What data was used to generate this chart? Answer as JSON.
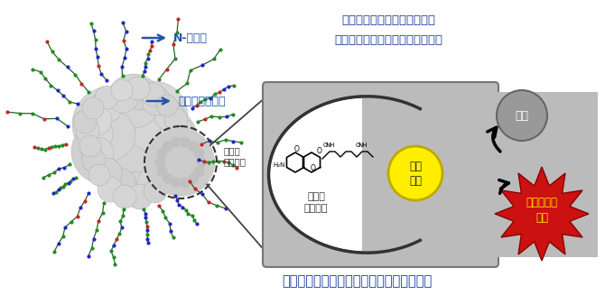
{
  "bg_color": "#ffffff",
  "title_text1": "「糖鎖パターン認識」により",
  "title_text2": "特定の臓器やがんに選択的に移行",
  "label_n_glycan": "N-型糖鎖",
  "label_albumin": "血清アルブミン",
  "label_pocket": "疏水性\nポケット",
  "label_ligand": "疏水性\nリガンド",
  "label_catalyst": "金属\n触媒",
  "label_material": "原料",
  "label_anticancer": "抗がん活性\n物質",
  "bottom_text": "遷移金属触媒が生体内環境で安定化される",
  "arrow_color": "#2255aa",
  "title_color": "#1a3a9a",
  "bottom_color": "#1a3a9a",
  "anticancer_color": "#cc1111",
  "anticancer_text_color": "#ffee00",
  "catalyst_fill": "#ffee00",
  "catalyst_stroke": "#bbaa00",
  "box_fill": "#bbbbbb",
  "box_stroke": "#777777",
  "material_fill": "#999999",
  "material_text_color": "#ffffff",
  "pocket_fill": "#cccccc"
}
